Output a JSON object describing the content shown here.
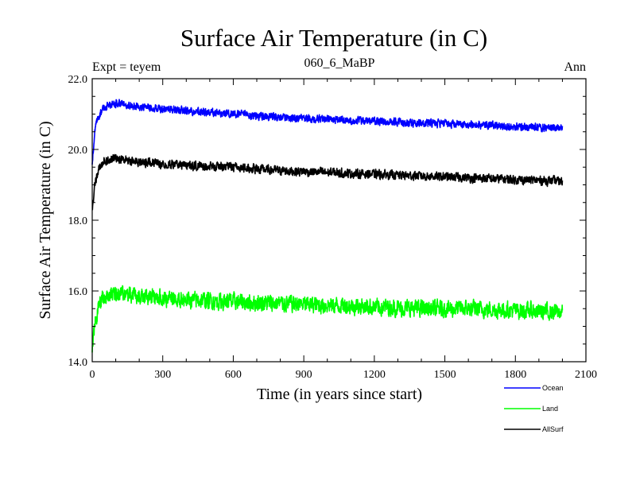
{
  "chart_data": {
    "type": "line",
    "title": "Surface Air Temperature (in C)",
    "subtitle": "060_6_MaBP",
    "header_left": "Expt = teyem",
    "header_right": "Ann",
    "xlabel": "Time (in years since start)",
    "ylabel": "Surface Air Temperature (in C)",
    "xlim": [
      0,
      2100
    ],
    "ylim": [
      14.0,
      22.0
    ],
    "x_ticks": [
      0,
      300,
      600,
      900,
      1200,
      1500,
      1800,
      2100
    ],
    "x_tick_labels": [
      "0",
      "300",
      "600",
      "900",
      "1200",
      "1500",
      "1800",
      "2100"
    ],
    "y_ticks": [
      14.0,
      16.0,
      18.0,
      20.0,
      22.0
    ],
    "y_tick_labels": [
      "14.0",
      "16.0",
      "18.0",
      "20.0",
      "22.0"
    ],
    "x_end": 2000,
    "legend_position": "bottom-right, outside plot",
    "series": [
      {
        "name": "Ocean",
        "color": "#0000ff",
        "noise": 0.15,
        "anchors": [
          [
            0,
            19.6
          ],
          [
            10,
            20.5
          ],
          [
            25,
            20.9
          ],
          [
            50,
            21.2
          ],
          [
            100,
            21.3
          ],
          [
            200,
            21.2
          ],
          [
            400,
            21.1
          ],
          [
            600,
            21.0
          ],
          [
            800,
            20.9
          ],
          [
            1000,
            20.85
          ],
          [
            1200,
            20.8
          ],
          [
            1400,
            20.75
          ],
          [
            1600,
            20.7
          ],
          [
            1800,
            20.65
          ],
          [
            2000,
            20.6
          ]
        ]
      },
      {
        "name": "Land",
        "color": "#00ff00",
        "noise": 0.32,
        "anchors": [
          [
            0,
            14.2
          ],
          [
            10,
            15.0
          ],
          [
            25,
            15.5
          ],
          [
            50,
            15.85
          ],
          [
            100,
            15.95
          ],
          [
            200,
            15.85
          ],
          [
            400,
            15.75
          ],
          [
            600,
            15.7
          ],
          [
            800,
            15.65
          ],
          [
            1000,
            15.6
          ],
          [
            1200,
            15.55
          ],
          [
            1400,
            15.5
          ],
          [
            1600,
            15.5
          ],
          [
            1800,
            15.45
          ],
          [
            2000,
            15.4
          ]
        ]
      },
      {
        "name": "AllSurf",
        "color": "#000000",
        "noise": 0.17,
        "anchors": [
          [
            0,
            18.2
          ],
          [
            10,
            19.0
          ],
          [
            25,
            19.4
          ],
          [
            50,
            19.7
          ],
          [
            100,
            19.75
          ],
          [
            200,
            19.65
          ],
          [
            400,
            19.55
          ],
          [
            600,
            19.5
          ],
          [
            800,
            19.4
          ],
          [
            1000,
            19.35
          ],
          [
            1200,
            19.3
          ],
          [
            1400,
            19.25
          ],
          [
            1600,
            19.2
          ],
          [
            1800,
            19.15
          ],
          [
            2000,
            19.1
          ]
        ]
      }
    ]
  }
}
